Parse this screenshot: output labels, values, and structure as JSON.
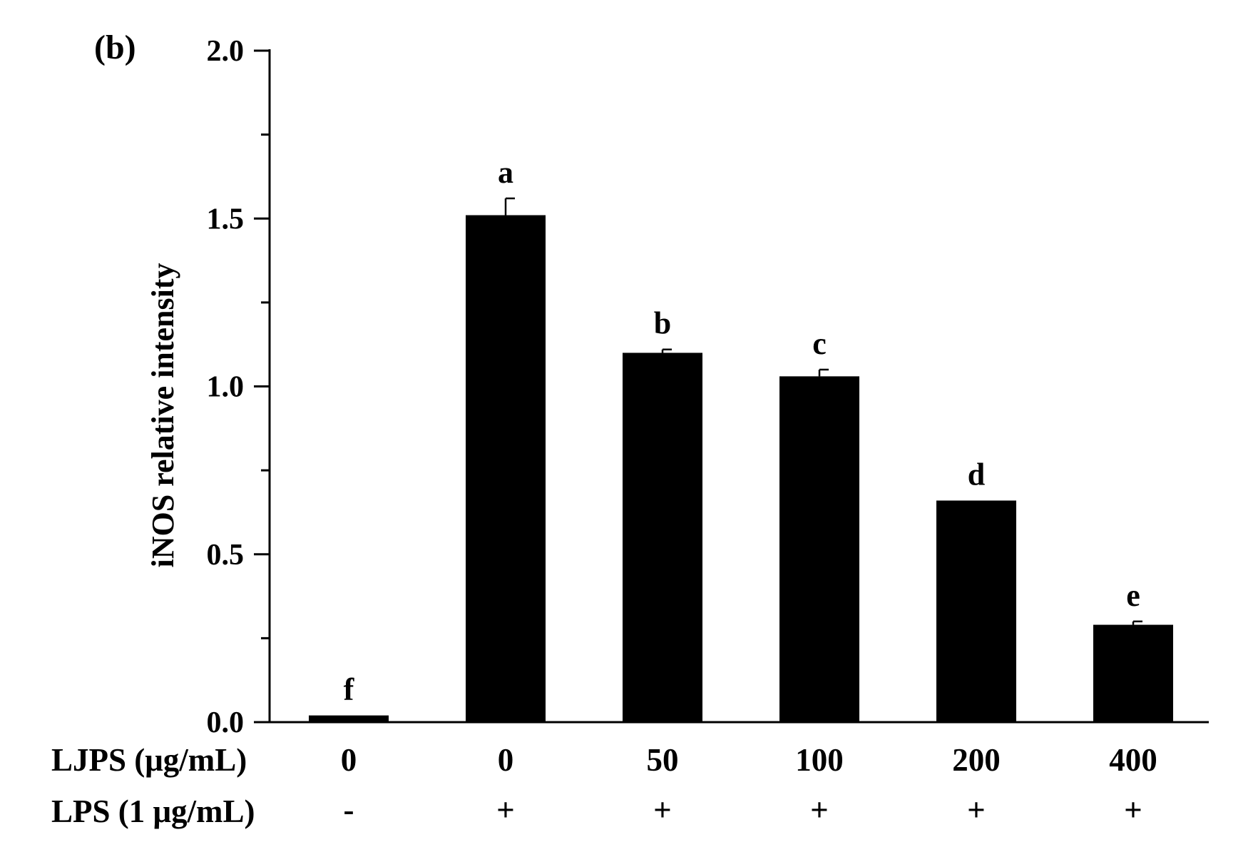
{
  "panel_label": "(b)",
  "chart_data": {
    "type": "bar",
    "title": "",
    "ylabel": "iNOS relative intensity",
    "xlabel": "",
    "ylim": [
      0,
      2.0
    ],
    "yticks": [
      "0.0",
      "0.5",
      "1.0",
      "1.5",
      "2.0"
    ],
    "categories": [
      {
        "ljps": "0",
        "lps": "-"
      },
      {
        "ljps": "0",
        "lps": "+"
      },
      {
        "ljps": "50",
        "lps": "+"
      },
      {
        "ljps": "100",
        "lps": "+"
      },
      {
        "ljps": "200",
        "lps": "+"
      },
      {
        "ljps": "400",
        "lps": "+"
      }
    ],
    "row_labels": {
      "ljps": "LJPS (μg/mL)",
      "lps": "LPS (1 μg/mL)"
    },
    "values": [
      0.02,
      1.51,
      1.1,
      1.03,
      0.66,
      0.29
    ],
    "errors": [
      0.0,
      0.05,
      0.01,
      0.02,
      0.0,
      0.01
    ],
    "significance_letters": [
      "f",
      "a",
      "b",
      "c",
      "d",
      "e"
    ],
    "bar_color": "#000000",
    "grid": false,
    "legend": "none"
  }
}
